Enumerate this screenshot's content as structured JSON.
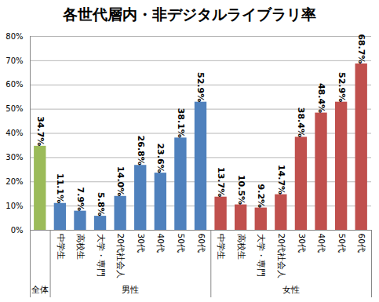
{
  "chart_data": {
    "type": "bar",
    "title": "各世代層内・非デジタルライブラリ率",
    "categories": [
      null,
      "中学生",
      "高校生",
      "大学・専門",
      "20代社会人",
      "30代",
      "40代",
      "50代",
      "60代",
      "中学生",
      "高校生",
      "大学・専門",
      "20代社会人",
      "30代",
      "40代",
      "50代",
      "60代"
    ],
    "groups": [
      {
        "name": "全体",
        "count": 1
      },
      {
        "name": "男性",
        "count": 8
      },
      {
        "name": "女性",
        "count": 8
      }
    ],
    "values": [
      34.7,
      11.1,
      7.9,
      5.8,
      14.0,
      26.8,
      23.6,
      38.1,
      52.9,
      13.7,
      10.5,
      9.2,
      14.7,
      38.4,
      48.4,
      52.9,
      68.7
    ],
    "value_labels": [
      "34.7%",
      "11.1%",
      "7.9%",
      "5.8%",
      "14.0%",
      "26.8%",
      "23.6%",
      "38.1%",
      "52.9%",
      "13.7%",
      "10.5%",
      "9.2%",
      "14.7%",
      "38.4%",
      "48.4%",
      "52.9%",
      "68.7%"
    ],
    "colors": [
      "#9bbb59",
      "#4f81bd",
      "#4f81bd",
      "#4f81bd",
      "#4f81bd",
      "#4f81bd",
      "#4f81bd",
      "#4f81bd",
      "#4f81bd",
      "#c0504d",
      "#c0504d",
      "#c0504d",
      "#c0504d",
      "#c0504d",
      "#c0504d",
      "#c0504d",
      "#c0504d"
    ],
    "ylim": [
      0,
      80
    ],
    "yticks": [
      {
        "value": 0,
        "label": "0%"
      },
      {
        "value": 10,
        "label": "10%"
      },
      {
        "value": 20,
        "label": "20%"
      },
      {
        "value": 30,
        "label": "30%"
      },
      {
        "value": 40,
        "label": "40%"
      },
      {
        "value": 50,
        "label": "50%"
      },
      {
        "value": 60,
        "label": "60%"
      },
      {
        "value": 70,
        "label": "70%"
      },
      {
        "value": 80,
        "label": "80%"
      }
    ],
    "grid": true,
    "data_labels": true
  }
}
